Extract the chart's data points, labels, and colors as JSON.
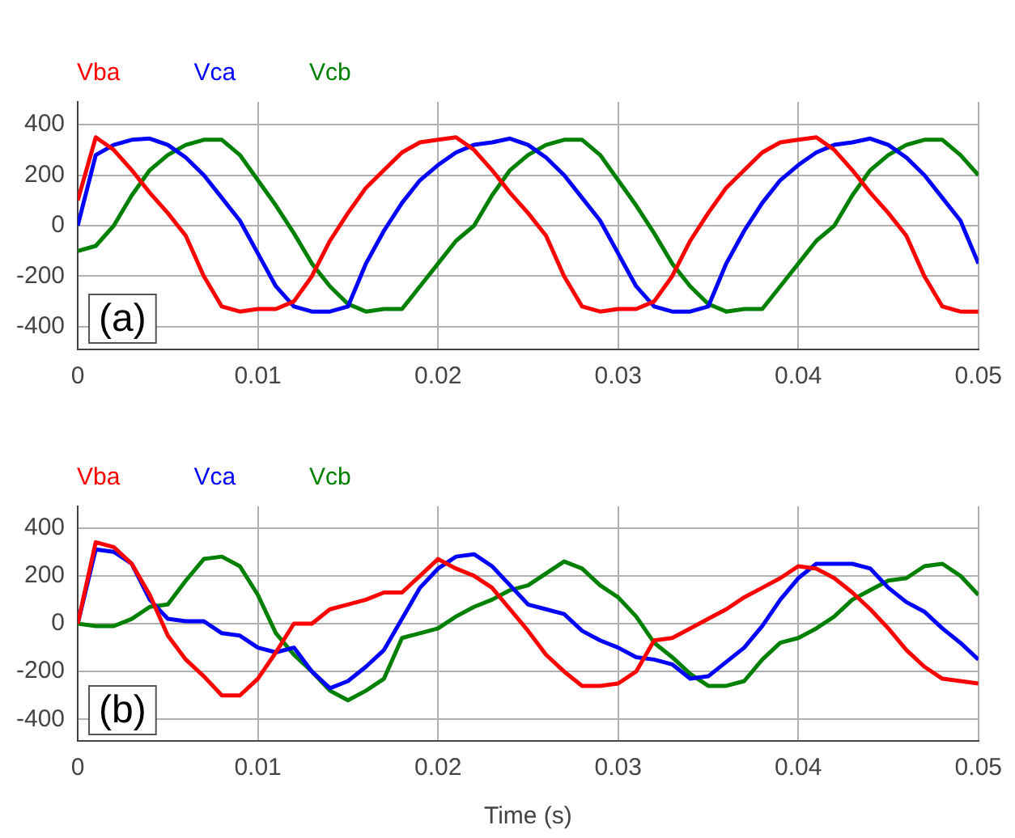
{
  "chart_data": [
    {
      "type": "line",
      "x": [
        0,
        0.001,
        0.002,
        0.003,
        0.004,
        0.005,
        0.006,
        0.007,
        0.008,
        0.009,
        0.01,
        0.011,
        0.012,
        0.013,
        0.014,
        0.015,
        0.016,
        0.017,
        0.018,
        0.019,
        0.02,
        0.021,
        0.022,
        0.023,
        0.024,
        0.025,
        0.026,
        0.027,
        0.028,
        0.029,
        0.03,
        0.031,
        0.032,
        0.033,
        0.034,
        0.035,
        0.036,
        0.037,
        0.038,
        0.039,
        0.04,
        0.041,
        0.042,
        0.043,
        0.044,
        0.045,
        0.046,
        0.047,
        0.048,
        0.049,
        0.05
      ],
      "series": [
        {
          "name": "Vba",
          "color": "#ff0000",
          "values": [
            100,
            350,
            300,
            220,
            130,
            50,
            -40,
            -200,
            -320,
            -340,
            -330,
            -330,
            -300,
            -200,
            -60,
            50,
            150,
            220,
            290,
            330,
            340,
            350,
            300,
            220,
            130,
            50,
            -40,
            -200,
            -320,
            -340,
            -330,
            -330,
            -300,
            -200,
            -60,
            50,
            150,
            220,
            290,
            330,
            340,
            350,
            300,
            220,
            130,
            50,
            -40,
            -200,
            -320,
            -340,
            -340
          ]
        },
        {
          "name": "Vca",
          "color": "#0000ff",
          "values": [
            0,
            280,
            320,
            340,
            345,
            320,
            270,
            200,
            110,
            20,
            -110,
            -240,
            -320,
            -340,
            -340,
            -320,
            -150,
            -20,
            90,
            180,
            240,
            290,
            320,
            330,
            345,
            320,
            270,
            200,
            110,
            20,
            -110,
            -240,
            -320,
            -340,
            -340,
            -320,
            -150,
            -20,
            90,
            180,
            240,
            290,
            320,
            330,
            345,
            320,
            270,
            200,
            110,
            20,
            -150
          ]
        },
        {
          "name": "Vcb",
          "color": "#008000",
          "values": [
            -100,
            -80,
            0,
            120,
            220,
            280,
            320,
            340,
            340,
            280,
            180,
            80,
            -30,
            -150,
            -240,
            -310,
            -340,
            -330,
            -330,
            -240,
            -150,
            -60,
            0,
            120,
            220,
            280,
            320,
            340,
            340,
            280,
            180,
            80,
            -30,
            -150,
            -240,
            -310,
            -340,
            -330,
            -330,
            -240,
            -150,
            -60,
            0,
            120,
            220,
            280,
            320,
            340,
            340,
            280,
            200
          ]
        }
      ],
      "xlim": [
        0,
        0.05
      ],
      "xticks": [
        0,
        0.01,
        0.02,
        0.03,
        0.04,
        0.05
      ],
      "ylim": [
        -490,
        490
      ],
      "yticks": [
        -400,
        -200,
        0,
        200,
        400
      ],
      "grid": true,
      "legend": "top left",
      "marker": "none",
      "annotations": [
        "(a)"
      ]
    },
    {
      "type": "line",
      "x": [
        0,
        0.001,
        0.002,
        0.003,
        0.004,
        0.005,
        0.006,
        0.007,
        0.008,
        0.009,
        0.01,
        0.011,
        0.012,
        0.013,
        0.014,
        0.015,
        0.016,
        0.017,
        0.018,
        0.019,
        0.02,
        0.021,
        0.022,
        0.023,
        0.024,
        0.025,
        0.026,
        0.027,
        0.028,
        0.029,
        0.03,
        0.031,
        0.032,
        0.033,
        0.034,
        0.035,
        0.036,
        0.037,
        0.038,
        0.039,
        0.04,
        0.041,
        0.042,
        0.043,
        0.044,
        0.045,
        0.046,
        0.047,
        0.048,
        0.049,
        0.05
      ],
      "series": [
        {
          "name": "Vba",
          "color": "#ff0000",
          "values": [
            0,
            340,
            320,
            250,
            120,
            -50,
            -150,
            -220,
            -300,
            -300,
            -230,
            -120,
            0,
            0,
            60,
            80,
            100,
            130,
            130,
            200,
            270,
            230,
            200,
            150,
            60,
            -30,
            -130,
            -200,
            -260,
            -260,
            -250,
            -200,
            -70,
            -60,
            -20,
            20,
            60,
            110,
            150,
            190,
            240,
            230,
            190,
            130,
            60,
            -20,
            -110,
            -180,
            -230,
            -240,
            -250
          ]
        },
        {
          "name": "Vca",
          "color": "#0000ff",
          "values": [
            0,
            310,
            300,
            250,
            100,
            20,
            10,
            10,
            -40,
            -50,
            -100,
            -120,
            -100,
            -200,
            -270,
            -240,
            -180,
            -110,
            20,
            150,
            230,
            280,
            290,
            240,
            160,
            80,
            60,
            40,
            -30,
            -70,
            -100,
            -140,
            -150,
            -170,
            -230,
            -220,
            -160,
            -100,
            -10,
            100,
            190,
            250,
            250,
            250,
            230,
            150,
            90,
            50,
            -20,
            -80,
            -150
          ]
        },
        {
          "name": "Vcb",
          "color": "#008000",
          "values": [
            0,
            -10,
            -10,
            20,
            70,
            80,
            180,
            270,
            280,
            240,
            120,
            -40,
            -130,
            -200,
            -280,
            -320,
            -280,
            -230,
            -60,
            -40,
            -20,
            30,
            70,
            100,
            140,
            160,
            210,
            260,
            230,
            160,
            110,
            30,
            -80,
            -140,
            -210,
            -260,
            -260,
            -240,
            -150,
            -80,
            -60,
            -20,
            30,
            100,
            140,
            180,
            190,
            240,
            250,
            200,
            120
          ]
        }
      ],
      "xlim": [
        0,
        0.05
      ],
      "xticks": [
        0,
        0.01,
        0.02,
        0.03,
        0.04,
        0.05
      ],
      "ylim": [
        -490,
        490
      ],
      "yticks": [
        -400,
        -200,
        0,
        200,
        400
      ],
      "xlabel": "Time (s)",
      "grid": true,
      "legend": "top left",
      "marker": "none",
      "annotations": [
        "(b)"
      ]
    }
  ]
}
